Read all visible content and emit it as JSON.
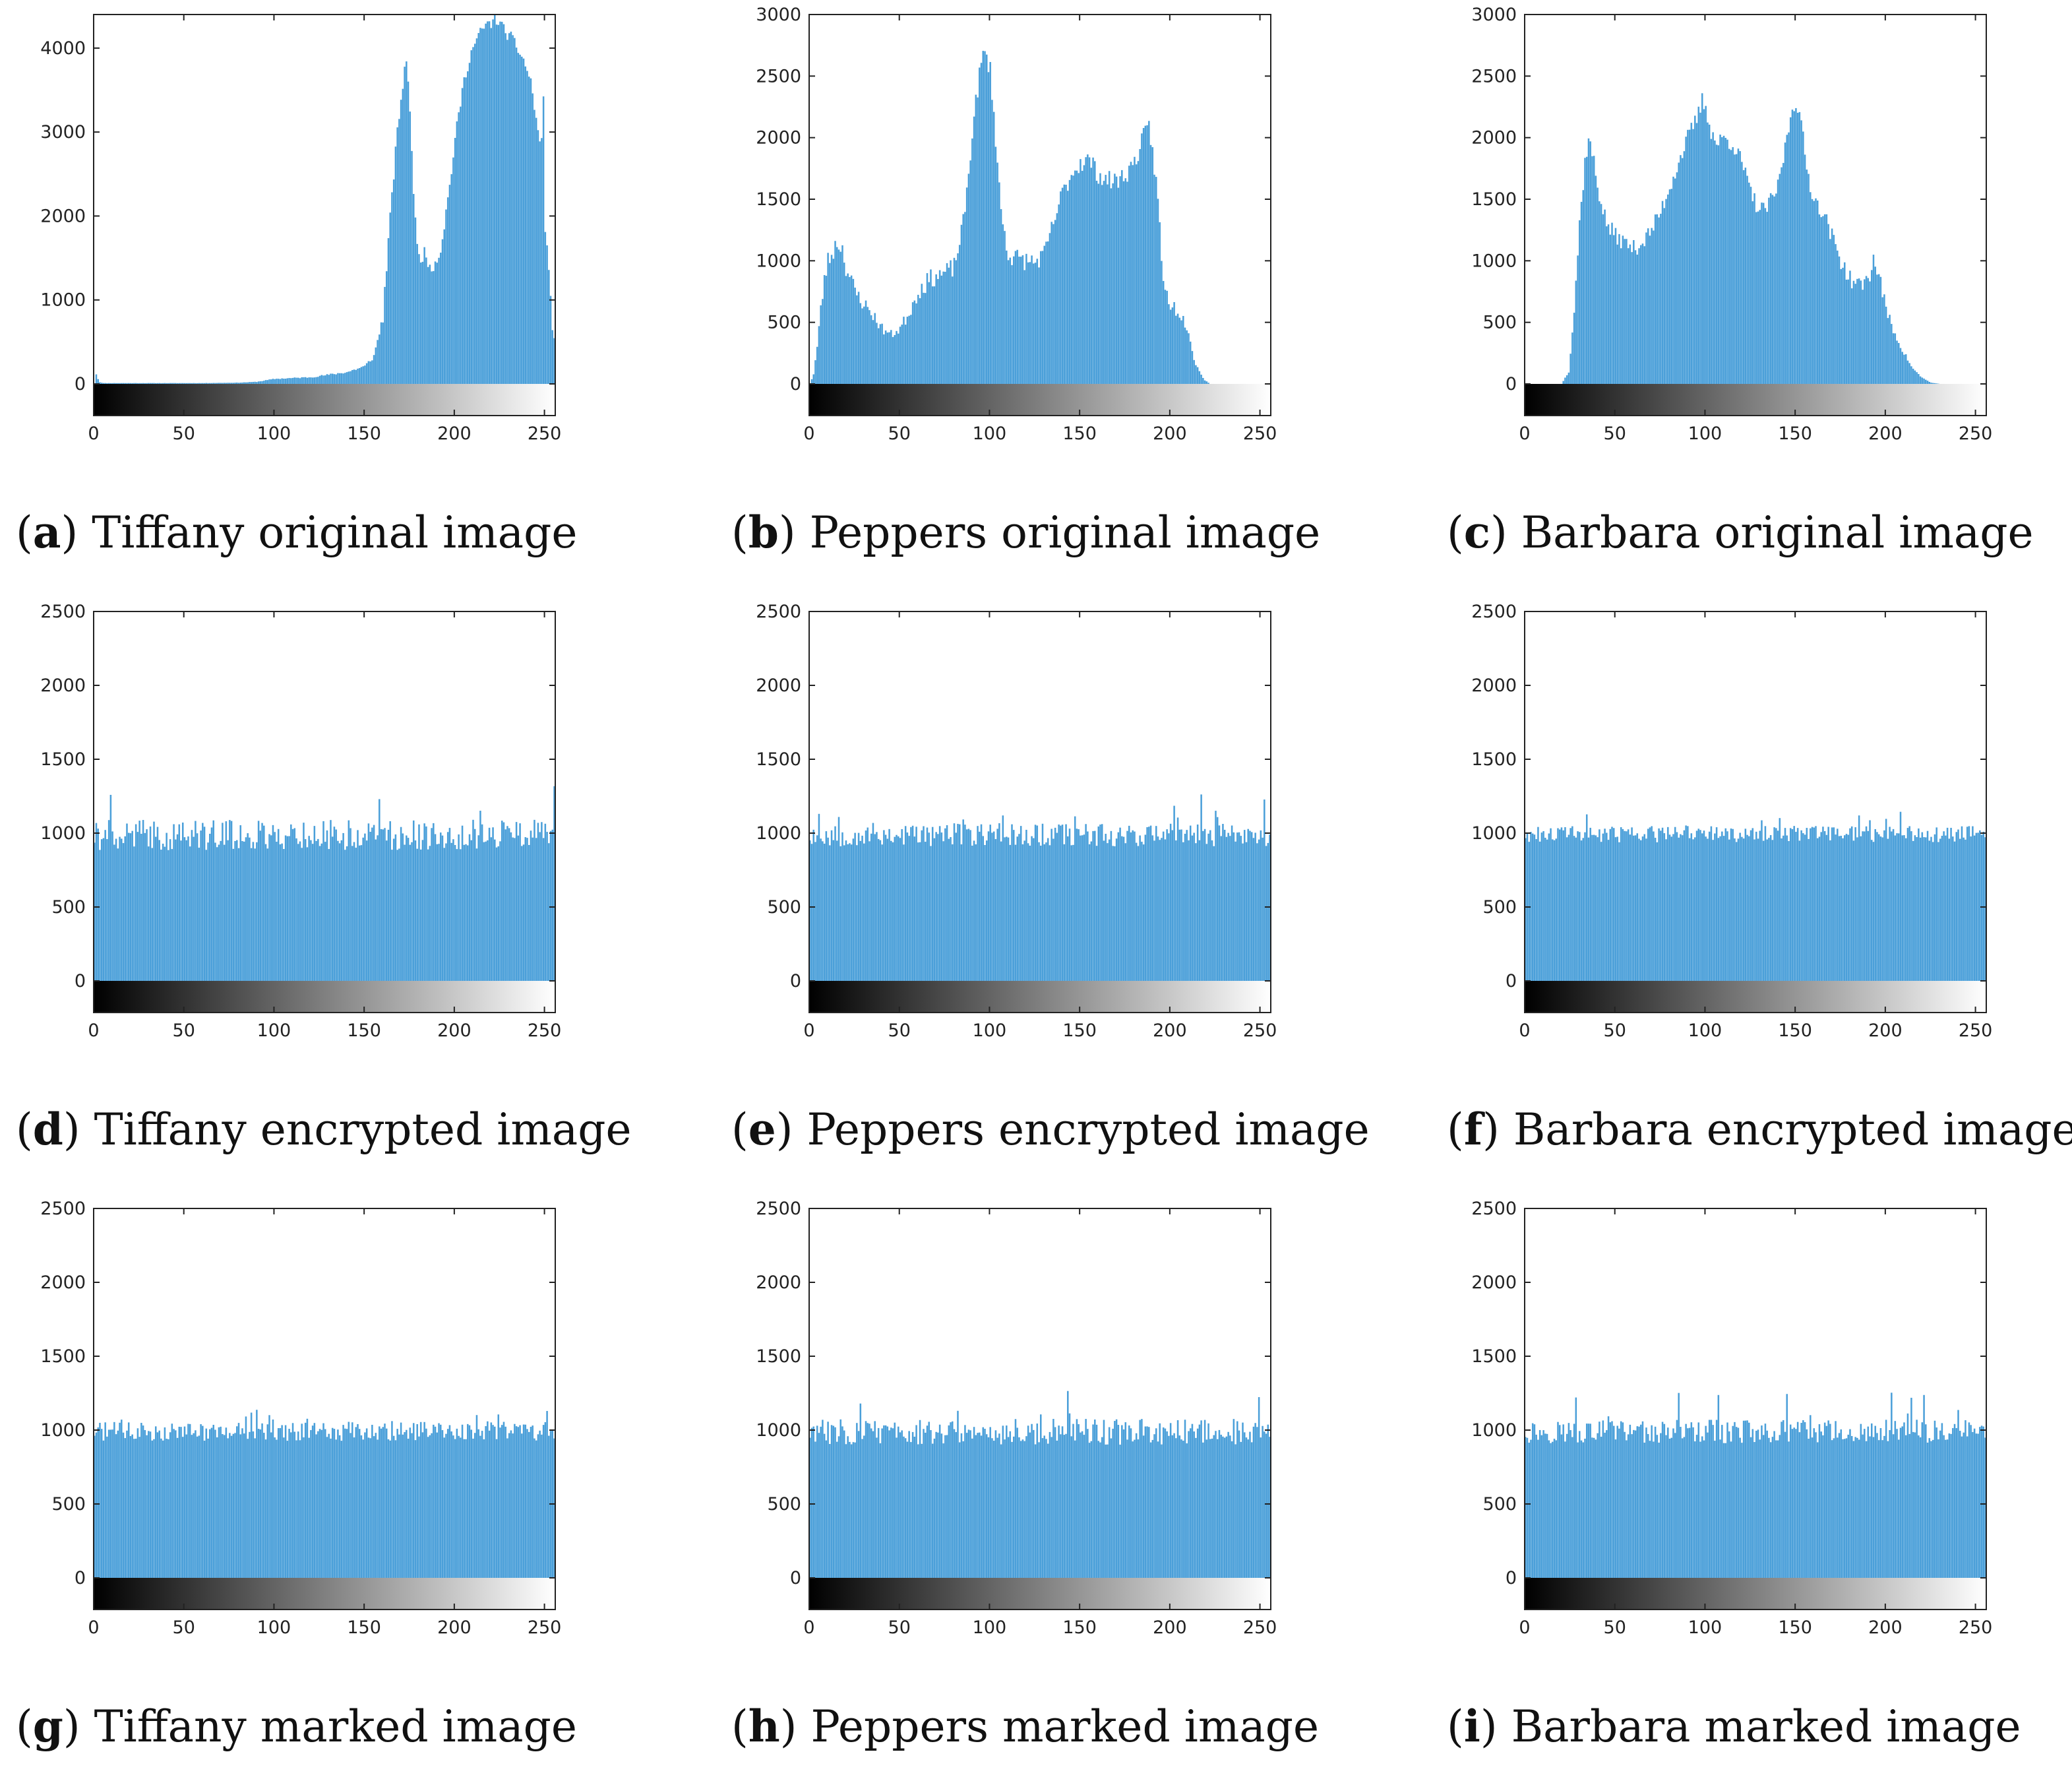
{
  "colors": {
    "bar": "#4a9fd9",
    "bar_stroke": "#3c8fcb",
    "axes": "#222222"
  },
  "chart_data": [
    {
      "id": "a",
      "letter": "a",
      "caption": "Tiffany original image",
      "type": "bar",
      "ylim": [
        0,
        4400
      ],
      "yticks": [
        0,
        1000,
        2000,
        3000,
        4000
      ],
      "xticks": [
        0,
        50,
        100,
        150,
        200,
        250
      ],
      "xlim": [
        0,
        256
      ],
      "colorbar": true,
      "grid": false,
      "profile_x": [
        0,
        1,
        2,
        3,
        5,
        60,
        80,
        90,
        100,
        110,
        120,
        130,
        140,
        150,
        155,
        160,
        163,
        166,
        168,
        170,
        172,
        173,
        175,
        177,
        180,
        183,
        185,
        188,
        192,
        196,
        200,
        204,
        208,
        212,
        216,
        220,
        222,
        224,
        226,
        228,
        230,
        233,
        236,
        239,
        242,
        244,
        246,
        248,
        249,
        250,
        252,
        253,
        254,
        255
      ],
      "profile_y": [
        0,
        120,
        60,
        20,
        10,
        10,
        15,
        25,
        60,
        70,
        80,
        110,
        140,
        210,
        330,
        800,
        1700,
        2500,
        3000,
        3400,
        3700,
        3900,
        3300,
        2200,
        1500,
        1550,
        1450,
        1400,
        1600,
        2200,
        2900,
        3500,
        3900,
        4100,
        4250,
        4300,
        4380,
        4320,
        4250,
        4200,
        4150,
        4050,
        3950,
        3800,
        3600,
        3300,
        3000,
        2850,
        3500,
        1800,
        1400,
        1000,
        700,
        500
      ],
      "noise_amp": 80,
      "seed": 11
    },
    {
      "id": "b",
      "letter": "b",
      "caption": "Peppers original image",
      "type": "bar",
      "ylim": [
        0,
        3000
      ],
      "yticks": [
        0,
        500,
        1000,
        1500,
        2000,
        2500,
        3000
      ],
      "xticks": [
        0,
        50,
        100,
        150,
        200,
        250
      ],
      "xlim": [
        0,
        256
      ],
      "colorbar": true,
      "grid": false,
      "profile_x": [
        0,
        2,
        4,
        6,
        8,
        10,
        12,
        15,
        18,
        20,
        25,
        30,
        35,
        40,
        45,
        50,
        55,
        60,
        65,
        70,
        75,
        80,
        85,
        88,
        90,
        93,
        95,
        97,
        100,
        103,
        106,
        110,
        115,
        120,
        125,
        130,
        135,
        140,
        145,
        150,
        155,
        160,
        165,
        170,
        175,
        180,
        185,
        188,
        190,
        193,
        196,
        200,
        205,
        210,
        213,
        216,
        219,
        222,
        225
      ],
      "profile_y": [
        0,
        80,
        300,
        600,
        850,
        1000,
        1050,
        1150,
        1100,
        950,
        750,
        650,
        560,
        450,
        400,
        450,
        580,
        750,
        830,
        880,
        900,
        950,
        1300,
        1700,
        2050,
        2400,
        2600,
        2700,
        2550,
        2000,
        1400,
        1050,
        1020,
        1000,
        990,
        1050,
        1300,
        1550,
        1700,
        1800,
        1820,
        1700,
        1650,
        1650,
        1700,
        1800,
        2000,
        2080,
        1900,
        1500,
        800,
        650,
        580,
        450,
        200,
        100,
        30,
        0,
        0
      ],
      "noise_amp": 80,
      "seed": 23
    },
    {
      "id": "c",
      "letter": "c",
      "caption": "Barbara original image",
      "type": "bar",
      "ylim": [
        0,
        3000
      ],
      "yticks": [
        0,
        500,
        1000,
        1500,
        2000,
        2500,
        3000
      ],
      "xticks": [
        0,
        50,
        100,
        150,
        200,
        250
      ],
      "xlim": [
        0,
        256
      ],
      "colorbar": true,
      "grid": false,
      "profile_x": [
        0,
        20,
        24,
        27,
        30,
        33,
        35,
        38,
        40,
        45,
        50,
        55,
        60,
        65,
        70,
        75,
        80,
        85,
        90,
        95,
        98,
        100,
        103,
        106,
        110,
        115,
        120,
        125,
        130,
        135,
        140,
        145,
        148,
        150,
        153,
        156,
        160,
        165,
        170,
        175,
        180,
        185,
        190,
        193,
        196,
        200,
        205,
        210,
        215,
        220,
        225,
        230,
        256
      ],
      "profile_y": [
        0,
        0,
        100,
        600,
        1300,
        1800,
        2000,
        1800,
        1600,
        1300,
        1200,
        1150,
        1100,
        1150,
        1250,
        1400,
        1600,
        1800,
        2000,
        2150,
        2300,
        2250,
        2050,
        1950,
        2000,
        1950,
        1800,
        1550,
        1400,
        1450,
        1600,
        2000,
        2250,
        2300,
        2100,
        1750,
        1500,
        1400,
        1200,
        1000,
        850,
        800,
        850,
        1000,
        900,
        600,
        400,
        250,
        120,
        50,
        10,
        0,
        0
      ],
      "noise_amp": 70,
      "seed": 37
    },
    {
      "id": "d",
      "letter": "d",
      "caption": "Tiffany encrypted image",
      "type": "bar",
      "ylim": [
        0,
        2500
      ],
      "yticks": [
        0,
        500,
        1000,
        1500,
        2000,
        2500
      ],
      "xticks": [
        0,
        50,
        100,
        150,
        200,
        250
      ],
      "xlim": [
        0,
        256
      ],
      "colorbar": true,
      "grid": false,
      "mean": 1000,
      "noise_amp": 130,
      "seed": 41
    },
    {
      "id": "e",
      "letter": "e",
      "caption": "Peppers encrypted image",
      "type": "bar",
      "ylim": [
        0,
        2500
      ],
      "yticks": [
        0,
        500,
        1000,
        1500,
        2000,
        2500
      ],
      "xticks": [
        0,
        50,
        100,
        150,
        200,
        250
      ],
      "xlim": [
        0,
        256
      ],
      "colorbar": true,
      "grid": false,
      "mean": 1000,
      "noise_amp": 100,
      "seed": 53
    },
    {
      "id": "f",
      "letter": "f",
      "caption": "Barbara encrypted image",
      "type": "bar",
      "ylim": [
        0,
        2500
      ],
      "yticks": [
        0,
        500,
        1000,
        1500,
        2000,
        2500
      ],
      "xticks": [
        0,
        50,
        100,
        150,
        200,
        250
      ],
      "xlim": [
        0,
        256
      ],
      "colorbar": true,
      "grid": false,
      "mean": 1000,
      "noise_amp": 70,
      "seed": 61
    },
    {
      "id": "g",
      "letter": "g",
      "caption": "Tiffany marked image",
      "type": "bar",
      "ylim": [
        0,
        2500
      ],
      "yticks": [
        0,
        500,
        1000,
        1500,
        2000,
        2500
      ],
      "xticks": [
        0,
        50,
        100,
        150,
        200,
        250
      ],
      "xlim": [
        0,
        256
      ],
      "colorbar": true,
      "grid": false,
      "mean": 1000,
      "noise_amp": 80,
      "seed": 71
    },
    {
      "id": "h",
      "letter": "h",
      "caption": "Peppers marked image",
      "type": "bar",
      "ylim": [
        0,
        2500
      ],
      "yticks": [
        0,
        500,
        1000,
        1500,
        2000,
        2500
      ],
      "xticks": [
        0,
        50,
        100,
        150,
        200,
        250
      ],
      "xlim": [
        0,
        256
      ],
      "colorbar": true,
      "grid": false,
      "mean": 1000,
      "noise_amp": 110,
      "seed": 83
    },
    {
      "id": "i",
      "letter": "i",
      "caption": "Barbara marked image",
      "type": "bar",
      "ylim": [
        0,
        2500
      ],
      "yticks": [
        0,
        500,
        1000,
        1500,
        2000,
        2500
      ],
      "xticks": [
        0,
        50,
        100,
        150,
        200,
        250
      ],
      "xlim": [
        0,
        256
      ],
      "colorbar": true,
      "grid": false,
      "mean": 1000,
      "noise_amp": 100,
      "seed": 97
    }
  ]
}
